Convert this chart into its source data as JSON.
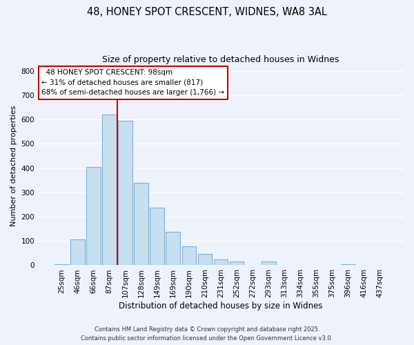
{
  "title1": "48, HONEY SPOT CRESCENT, WIDNES, WA8 3AL",
  "title2": "Size of property relative to detached houses in Widnes",
  "xlabel": "Distribution of detached houses by size in Widnes",
  "ylabel": "Number of detached properties",
  "bin_labels": [
    "25sqm",
    "46sqm",
    "66sqm",
    "87sqm",
    "107sqm",
    "128sqm",
    "149sqm",
    "169sqm",
    "190sqm",
    "210sqm",
    "231sqm",
    "252sqm",
    "272sqm",
    "293sqm",
    "313sqm",
    "334sqm",
    "355sqm",
    "375sqm",
    "396sqm",
    "416sqm",
    "437sqm"
  ],
  "bar_heights": [
    5,
    107,
    405,
    620,
    595,
    338,
    236,
    138,
    78,
    48,
    25,
    15,
    0,
    15,
    0,
    0,
    0,
    0,
    5,
    0,
    0
  ],
  "bar_color": "#c8dff0",
  "bar_edge_color": "#7ab0d4",
  "vline_color": "#cc0000",
  "ylim": [
    0,
    820
  ],
  "yticks": [
    0,
    100,
    200,
    300,
    400,
    500,
    600,
    700,
    800
  ],
  "annotation_title": "48 HONEY SPOT CRESCENT: 98sqm",
  "annotation_line1": "← 31% of detached houses are smaller (817)",
  "annotation_line2": "68% of semi-detached houses are larger (1,766) →",
  "annotation_box_color": "#ffffff",
  "annotation_box_edge": "#cc0000",
  "footer1": "Contains HM Land Registry data © Crown copyright and database right 2025.",
  "footer2": "Contains public sector information licensed under the Open Government Licence v3.0.",
  "bg_color": "#eef2fa",
  "grid_color": "#ffffff"
}
